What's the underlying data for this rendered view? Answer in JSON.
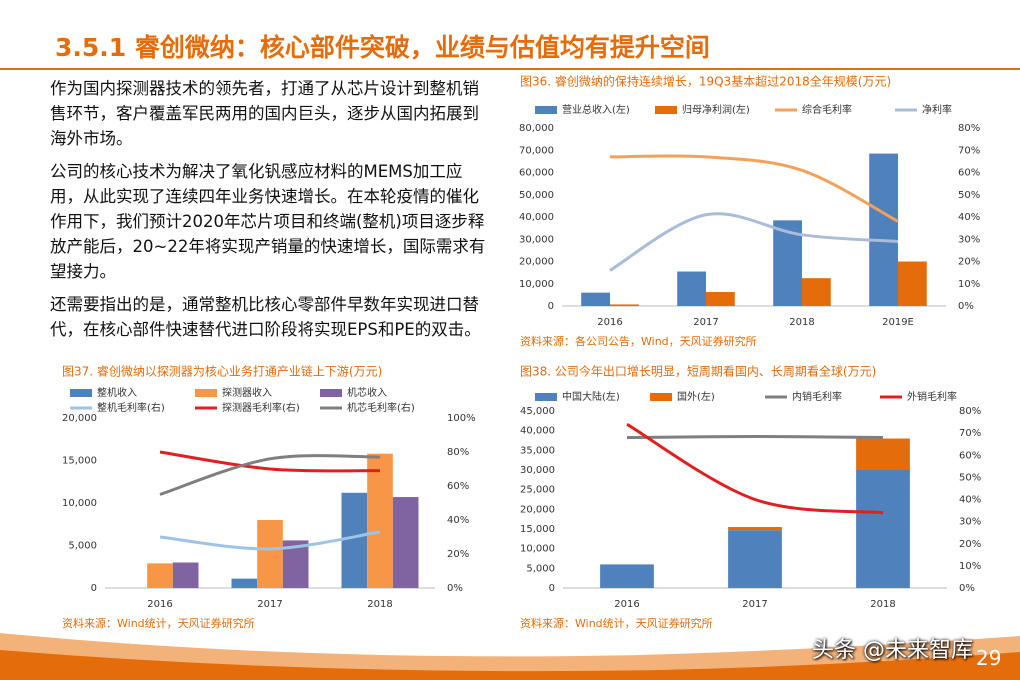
{
  "header": {
    "title": "3.5.1 睿创微纳：核心部件突破，业绩与估值均有提升空间"
  },
  "paragraphs": [
    "作为国内探测器技术的领先者，打通了从芯片设计到整机销售环节，客户覆盖军民两用的国内巨头，逐步从国内拓展到海外市场。",
    "公司的核心技术为解决了氧化钒感应材料的MEMS加工应用，从此实现了连续四年业务快速增长。在本轮疫情的催化作用下，我们预计2020年芯片项目和终端(整机)项目逐步释放产能后，20~22年将实现产销量的快速增长，国际需求有望接力。",
    "还需要指出的是，通常整机比核心零部件早数年实现进口替代，在核心部件快速替代进口阶段将实现EPS和PE的双击。"
  ],
  "chart_data": [
    {
      "type": "combo",
      "title": "图36. 睿创微纳的保持连续增长，19Q3基本超过2018全年规模(万元)",
      "categories": [
        "2016",
        "2017",
        "2018",
        "2019E"
      ],
      "stacked": false,
      "grid": false,
      "series": [
        {
          "name": "营业总收入(左)",
          "type": "bar",
          "color": "#4f81bd",
          "values": [
            6000,
            15500,
            38500,
            68500
          ]
        },
        {
          "name": "归母净利润(左)",
          "type": "bar",
          "color": "#e46c0a",
          "values": [
            700,
            6300,
            12500,
            20000
          ]
        },
        {
          "name": "综合毛利率",
          "type": "line",
          "axis": "y2",
          "color": "#f5a05a",
          "values": [
            67,
            67,
            61,
            38
          ]
        },
        {
          "name": "净利率",
          "type": "line",
          "axis": "y2",
          "color": "#a9bcd9",
          "values": [
            16,
            41,
            32,
            29
          ]
        }
      ],
      "ylim": [
        0,
        80000
      ],
      "yticks": [
        0,
        {
          "value": 10000,
          "label": "10,000"
        },
        {
          "value": 20000,
          "label": "20,000"
        },
        {
          "value": 30000,
          "label": "30,000"
        },
        {
          "value": 40000,
          "label": "40,000"
        },
        {
          "value": 50000,
          "label": "50,000"
        },
        {
          "value": 60000,
          "label": "60,000"
        },
        {
          "value": 70000,
          "label": "70,000"
        },
        {
          "value": 80000,
          "label": "80,000"
        }
      ],
      "y2lim": [
        0,
        80
      ],
      "y2ticks": [
        {
          "value": 0,
          "label": "0%"
        },
        {
          "value": 10,
          "label": "10%"
        },
        {
          "value": 20,
          "label": "20%"
        },
        {
          "value": 30,
          "label": "30%"
        },
        {
          "value": 40,
          "label": "40%"
        },
        {
          "value": 50,
          "label": "50%"
        },
        {
          "value": 60,
          "label": "60%"
        },
        {
          "value": 70,
          "label": "70%"
        },
        {
          "value": 80,
          "label": "80%"
        }
      ],
      "source": "资料来源：各公司公告，Wind，天风证券研究所"
    },
    {
      "type": "combo",
      "title": "图37. 睿创微纳以探测器为核心业务打通产业链上下游(万元)",
      "categories": [
        "2016",
        "2017",
        "2018"
      ],
      "stacked": false,
      "grid": false,
      "series": [
        {
          "name": "整机收入",
          "type": "bar",
          "color": "#4f81bd",
          "values": [
            null,
            1100,
            11200
          ]
        },
        {
          "name": "探测器收入",
          "type": "bar",
          "color": "#f79646",
          "values": [
            2900,
            8000,
            15800
          ]
        },
        {
          "name": "机芯收入",
          "type": "bar",
          "color": "#8064a2",
          "values": [
            3000,
            5600,
            10700
          ]
        },
        {
          "name": "整机毛利率(右)",
          "type": "line",
          "axis": "y2",
          "color": "#9dc3e6",
          "values": [
            30,
            23,
            33
          ]
        },
        {
          "name": "探测器毛利率(右)",
          "type": "line",
          "axis": "y2",
          "color": "#e02020",
          "values": [
            80,
            70,
            69
          ]
        },
        {
          "name": "机芯毛利率(右)",
          "type": "line",
          "axis": "y2",
          "color": "#7f7f7f",
          "values": [
            55,
            76,
            77
          ]
        }
      ],
      "ylim": [
        0,
        20000
      ],
      "yticks": [
        0,
        {
          "value": 5000,
          "label": "5,000"
        },
        {
          "value": 10000,
          "label": "10,000"
        },
        {
          "value": 15000,
          "label": "15,000"
        },
        {
          "value": 20000,
          "label": "20,000"
        }
      ],
      "y2lim": [
        0,
        100
      ],
      "y2ticks": [
        {
          "value": 0,
          "label": "0%"
        },
        {
          "value": 20,
          "label": "20%"
        },
        {
          "value": 40,
          "label": "40%"
        },
        {
          "value": 60,
          "label": "60%"
        },
        {
          "value": 80,
          "label": "80%"
        },
        {
          "value": 100,
          "label": "100%"
        }
      ],
      "source": "资料来源：Wind统计，天风证券研究所"
    },
    {
      "type": "combo",
      "title": "图38. 公司今年出口增长明显，短周期看国内、长周期看全球(万元)",
      "categories": [
        "2016",
        "2017",
        "2018"
      ],
      "stacked": true,
      "grid": false,
      "series": [
        {
          "name": "中国大陆(左)",
          "type": "bar",
          "color": "#4f81bd",
          "values": [
            6000,
            14700,
            30000
          ]
        },
        {
          "name": "国外(左)",
          "type": "bar",
          "color": "#e46c0a",
          "values": [
            null,
            800,
            8000
          ]
        },
        {
          "name": "内销毛利率",
          "type": "line",
          "axis": "y2",
          "color": "#7f7f7f",
          "values": [
            68,
            68.5,
            68
          ]
        },
        {
          "name": "外销毛利率",
          "type": "line",
          "axis": "y2",
          "color": "#e02020",
          "values": [
            74,
            40,
            34
          ]
        }
      ],
      "ylim": [
        0,
        45000
      ],
      "yticks": [
        0,
        {
          "value": 5000,
          "label": "5,000"
        },
        {
          "value": 10000,
          "label": "10,000"
        },
        {
          "value": 15000,
          "label": "15,000"
        },
        {
          "value": 20000,
          "label": "20,000"
        },
        {
          "value": 25000,
          "label": "25,000"
        },
        {
          "value": 30000,
          "label": "30,000"
        },
        {
          "value": 35000,
          "label": "35,000"
        },
        {
          "value": 40000,
          "label": "40,000"
        },
        {
          "value": 45000,
          "label": "45,000"
        }
      ],
      "y2lim": [
        0,
        80
      ],
      "y2ticks": [
        {
          "value": 0,
          "label": "0%"
        },
        {
          "value": 10,
          "label": "10%"
        },
        {
          "value": 20,
          "label": "20%"
        },
        {
          "value": 30,
          "label": "30%"
        },
        {
          "value": 40,
          "label": "40%"
        },
        {
          "value": 50,
          "label": "50%"
        },
        {
          "value": 60,
          "label": "60%"
        },
        {
          "value": 70,
          "label": "70%"
        },
        {
          "value": 80,
          "label": "80%"
        }
      ],
      "source": "资料来源：Wind统计，天风证券研究所"
    }
  ],
  "footer": {
    "watermark": "头条 @未来智库",
    "page": "29"
  }
}
